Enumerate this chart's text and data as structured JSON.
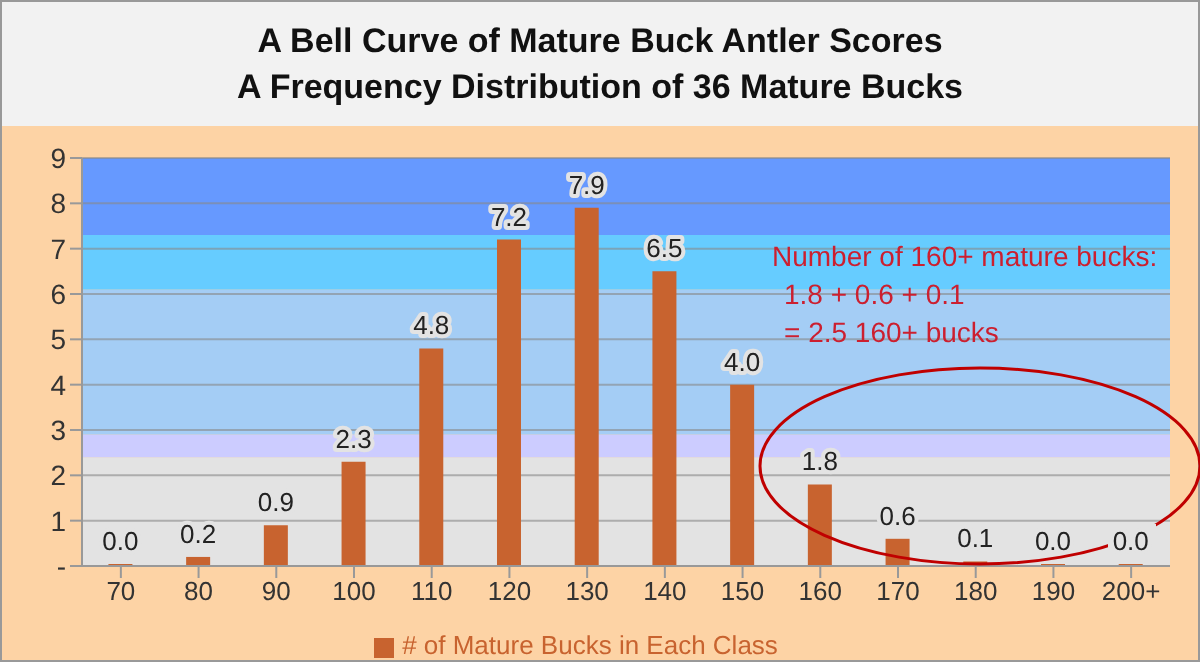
{
  "chart_data": {
    "type": "bar",
    "title": "A Bell Curve of Mature Buck Antler Scores",
    "subtitle": "A Frequency Distribution of 36 Mature Bucks",
    "categories": [
      "70",
      "80",
      "90",
      "100",
      "110",
      "120",
      "130",
      "140",
      "150",
      "160",
      "170",
      "180",
      "190",
      "200+"
    ],
    "series": [
      {
        "name": "# of Mature Bucks in Each Class",
        "color": "#c8632f",
        "values": [
          0.0,
          0.2,
          0.9,
          2.3,
          4.8,
          7.2,
          7.9,
          6.5,
          4.0,
          1.8,
          0.6,
          0.1,
          0.0,
          0.0
        ],
        "value_labels": [
          "0.0",
          "0.2",
          "0.9",
          "2.3",
          "4.8",
          "7.2",
          "7.9",
          "6.5",
          "4.0",
          "1.8",
          "0.6",
          "0.1",
          "0.0",
          "0.0"
        ]
      }
    ],
    "ylim": [
      0,
      9
    ],
    "yticks": [
      {
        "value": 0,
        "label": "-"
      },
      1,
      2,
      3,
      4,
      5,
      6,
      7,
      8,
      9
    ],
    "grid": "y",
    "legend": "bottom",
    "bands": [
      {
        "axis": "y",
        "from": 0,
        "to": 2.4,
        "color": "#e3e3e3"
      },
      {
        "axis": "y",
        "from": 2.4,
        "to": 2.9,
        "color": "#ccccff"
      },
      {
        "axis": "y",
        "from": 2.9,
        "to": 6.1,
        "color": "#a4cdf5"
      },
      {
        "axis": "y",
        "from": 6.1,
        "to": 7.3,
        "color": "#66ccff"
      },
      {
        "axis": "y",
        "from": 7.3,
        "to": 9,
        "color": "#6699ff"
      }
    ],
    "annotations": [
      "Number of 160+  mature bucks:",
      "1.8 + 0.6 + 0.1",
      "= 2.5 160+ bucks"
    ]
  }
}
